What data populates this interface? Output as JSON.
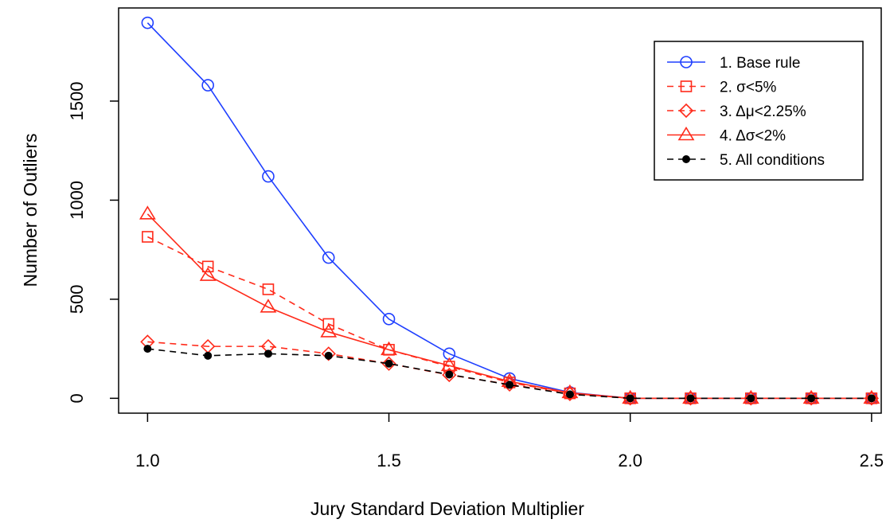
{
  "chart_data": {
    "type": "line",
    "title": "",
    "xlabel": "Jury Standard Deviation Multiplier",
    "ylabel": "Number of Outliers",
    "x": [
      1.0,
      1.125,
      1.25,
      1.375,
      1.5,
      1.625,
      1.75,
      1.875,
      2.0,
      2.125,
      2.25,
      2.375,
      2.5
    ],
    "xlim": [
      0.94,
      2.52
    ],
    "ylim": [
      -75,
      1970
    ],
    "xticks": [
      1.0,
      1.5,
      2.0,
      2.5
    ],
    "xtick_labels": [
      "1.0",
      "1.5",
      "2.0",
      "2.5"
    ],
    "yticks": [
      0,
      500,
      1000,
      1500
    ],
    "ytick_labels": [
      "0",
      "500",
      "1000",
      "1500"
    ],
    "grid": false,
    "legend_position": "top-right",
    "series": [
      {
        "name": "1. Base rule",
        "color": "#1f3fff",
        "dash": "solid",
        "marker": "circle",
        "values": [
          1895,
          1580,
          1120,
          710,
          400,
          225,
          100,
          30,
          0,
          0,
          0,
          0,
          0
        ]
      },
      {
        "name": "2. σ<5%",
        "color": "#ff2a1a",
        "dash": "dashed",
        "marker": "square",
        "values": [
          815,
          665,
          550,
          375,
          245,
          160,
          80,
          25,
          0,
          0,
          0,
          0,
          0
        ]
      },
      {
        "name": "3. Δμ<2.25%",
        "color": "#ff2a1a",
        "dash": "dashed",
        "marker": "diamond",
        "values": [
          285,
          262,
          262,
          225,
          175,
          118,
          70,
          22,
          0,
          0,
          0,
          0,
          0
        ]
      },
      {
        "name": "4. Δσ<2%",
        "color": "#ff2a1a",
        "dash": "solid",
        "marker": "triangle",
        "values": [
          930,
          620,
          460,
          335,
          245,
          165,
          85,
          28,
          0,
          0,
          0,
          0,
          0
        ]
      },
      {
        "name": "5. All conditions",
        "color": "#000000",
        "dash": "dashed",
        "marker": "dot",
        "values": [
          250,
          215,
          225,
          215,
          175,
          120,
          68,
          20,
          0,
          0,
          0,
          0,
          0
        ]
      }
    ]
  }
}
